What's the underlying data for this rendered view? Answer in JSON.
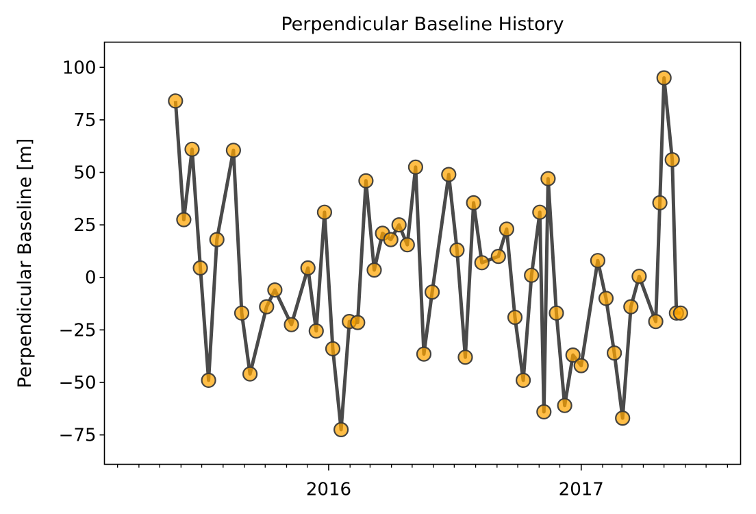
{
  "chart_data": {
    "type": "line",
    "title": "Perpendicular Baseline History",
    "xlabel": "",
    "ylabel": "Perpendicular Baseline [m]",
    "ylim": [
      -89,
      112
    ],
    "xlim": [
      "2015-02-10",
      "2017-08-20"
    ],
    "yticks": [
      100,
      75,
      50,
      25,
      0,
      -25,
      -50,
      -75
    ],
    "ytick_labels": [
      "100",
      "75",
      "50",
      "25",
      "0",
      "−25",
      "−50",
      "−75"
    ],
    "xticks_major": [
      "2016-01-01",
      "2017-01-01"
    ],
    "xtick_labels": [
      "2016",
      "2017"
    ],
    "xticks_minor": "monthly",
    "grid": false,
    "line_color": "#4a4a4a",
    "marker_face_color": "#ffa500",
    "marker_edge_color": "#3a3a3a",
    "series": [
      {
        "name": "Perpendicular Baseline",
        "x": [
          "2015-05-24",
          "2015-06-05",
          "2015-06-17",
          "2015-06-29",
          "2015-07-11",
          "2015-07-23",
          "2015-08-16",
          "2015-08-28",
          "2015-09-09",
          "2015-10-03",
          "2015-10-15",
          "2015-11-08",
          "2015-12-02",
          "2015-12-14",
          "2015-12-26",
          "2016-01-07",
          "2016-01-19",
          "2016-01-31",
          "2016-02-12",
          "2016-02-24",
          "2016-03-07",
          "2016-03-19",
          "2016-03-31",
          "2016-04-12",
          "2016-04-24",
          "2016-05-06",
          "2016-05-18",
          "2016-05-30",
          "2016-06-23",
          "2016-07-05",
          "2016-07-17",
          "2016-07-29",
          "2016-08-10",
          "2016-09-03",
          "2016-09-15",
          "2016-09-27",
          "2016-10-09",
          "2016-10-21",
          "2016-11-02",
          "2016-11-08",
          "2016-11-14",
          "2016-11-26",
          "2016-12-08",
          "2016-12-20",
          "2017-01-01",
          "2017-01-25",
          "2017-02-06",
          "2017-02-18",
          "2017-03-02",
          "2017-03-14",
          "2017-03-26",
          "2017-04-19",
          "2017-04-25",
          "2017-05-01",
          "2017-05-13",
          "2017-05-19",
          "2017-05-25"
        ],
        "values": [
          84,
          27.5,
          61,
          4.5,
          -49,
          18,
          60.5,
          -17,
          -46,
          -14,
          -6,
          -22.5,
          4.5,
          -25.5,
          31,
          -34,
          -72.5,
          -21,
          -21.5,
          46,
          3.5,
          21,
          18,
          25,
          15.5,
          52.5,
          -36.5,
          -7,
          49,
          13,
          -38,
          35.5,
          7,
          10,
          23,
          -19,
          -49,
          1,
          31,
          -64,
          47,
          -17,
          -61,
          -37,
          -42,
          8,
          -10,
          -36,
          -67,
          -14,
          0.5,
          -21,
          35.5,
          95,
          56,
          -17,
          -17
        ]
      }
    ]
  }
}
